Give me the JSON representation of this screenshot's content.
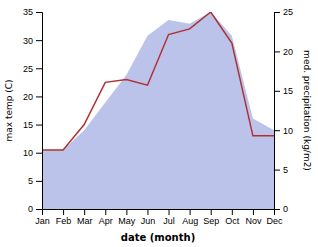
{
  "chart_data": {
    "type": "line",
    "categories": [
      "Jan",
      "Feb",
      "Mar",
      "Apr",
      "May",
      "Jun",
      "Jul",
      "Aug",
      "Sep",
      "Oct",
      "Nov",
      "Dec"
    ],
    "xlabel": "date (month)",
    "ylabel": "max temp (C)",
    "y2label": "med. precipitation (kg/m2)",
    "series": [
      {
        "type": "area",
        "axis": "y2",
        "color": "#b0b8e8",
        "values": [
          7.5,
          7.5,
          10.0,
          13.5,
          17.0,
          22.0,
          24.0,
          23.5,
          25.0,
          22.0,
          11.5,
          10.0
        ]
      },
      {
        "type": "line",
        "color": "#b03030",
        "values": [
          10.5,
          10.5,
          15.0,
          22.5,
          23.0,
          22.0,
          31.0,
          32.0,
          35.0,
          29.5,
          13.0,
          13.0
        ]
      }
    ],
    "ylim": [
      0,
      35
    ],
    "yticks": [
      0,
      5,
      10,
      15,
      20,
      25,
      30,
      35
    ],
    "y2lim": [
      0,
      25
    ],
    "y2ticks": [
      0,
      5,
      10,
      15,
      20,
      25
    ]
  }
}
